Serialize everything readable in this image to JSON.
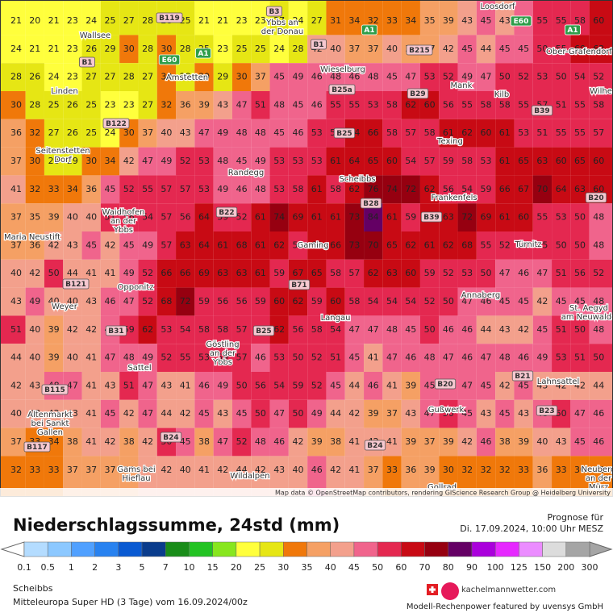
{
  "map": {
    "attribution": "Map data © OpenStreetMap contributors, rendering GIScience Research Group @ Heidelberg University",
    "rows": [
      [
        21,
        20,
        21,
        23,
        24,
        25,
        27,
        28,
        28,
        25,
        21,
        21,
        23,
        23,
        27,
        24,
        27,
        31,
        34,
        32,
        33,
        34,
        35,
        39,
        43,
        45,
        43,
        48,
        55,
        55,
        58,
        60
      ],
      [
        24,
        21,
        21,
        23,
        26,
        29,
        30,
        28,
        30,
        28,
        25,
        23,
        25,
        25,
        24,
        28,
        42,
        40,
        37,
        37,
        40,
        37,
        37,
        42,
        45,
        44,
        45,
        45,
        50,
        55,
        60,
        62
      ],
      [
        28,
        26,
        24,
        23,
        27,
        27,
        28,
        27,
        30,
        28,
        30,
        29,
        30,
        37,
        45,
        49,
        46,
        48,
        46,
        48,
        45,
        47,
        53,
        52,
        49,
        47,
        50,
        52,
        53,
        50,
        54,
        52
      ],
      [
        30,
        28,
        25,
        26,
        25,
        23,
        23,
        27,
        32,
        36,
        39,
        43,
        47,
        51,
        48,
        45,
        46,
        55,
        55,
        53,
        58,
        62,
        60,
        56,
        55,
        58,
        58,
        55,
        57,
        51,
        55,
        58
      ],
      [
        36,
        32,
        27,
        26,
        25,
        24,
        30,
        37,
        40,
        43,
        47,
        49,
        48,
        48,
        45,
        46,
        53,
        55,
        64,
        66,
        58,
        57,
        58,
        61,
        62,
        60,
        61,
        53,
        51,
        55,
        55,
        57
      ],
      [
        37,
        30,
        28,
        29,
        30,
        34,
        42,
        47,
        49,
        52,
        53,
        48,
        45,
        49,
        53,
        53,
        53,
        61,
        64,
        65,
        60,
        54,
        57,
        59,
        58,
        53,
        61,
        65,
        63,
        60,
        65,
        60
      ],
      [
        41,
        32,
        33,
        34,
        36,
        45,
        52,
        55,
        57,
        57,
        53,
        49,
        46,
        48,
        53,
        58,
        61,
        58,
        62,
        76,
        74,
        72,
        62,
        56,
        54,
        59,
        66,
        67,
        70,
        64,
        63,
        60
      ],
      [
        37,
        35,
        39,
        40,
        40,
        51,
        56,
        54,
        57,
        56,
        64,
        59,
        52,
        61,
        74,
        69,
        61,
        61,
        73,
        84,
        61,
        59,
        61,
        63,
        72,
        69,
        61,
        60,
        55,
        53,
        50,
        48
      ],
      [
        37,
        36,
        42,
        43,
        45,
        42,
        45,
        49,
        57,
        63,
        64,
        61,
        68,
        61,
        62,
        58,
        60,
        66,
        73,
        70,
        65,
        62,
        61,
        62,
        68,
        55,
        52,
        56,
        55,
        50,
        50,
        48
      ],
      [
        40,
        42,
        50,
        44,
        41,
        41,
        49,
        52,
        66,
        66,
        69,
        63,
        63,
        61,
        59,
        67,
        65,
        58,
        57,
        62,
        63,
        60,
        59,
        52,
        53,
        50,
        47,
        46,
        47,
        51,
        56,
        52
      ],
      [
        43,
        49,
        40,
        40,
        43,
        46,
        47,
        52,
        68,
        72,
        59,
        56,
        56,
        59,
        60,
        62,
        59,
        60,
        58,
        54,
        54,
        54,
        52,
        50,
        47,
        46,
        45,
        45,
        42,
        45,
        45,
        48
      ],
      [
        51,
        40,
        39,
        42,
        42,
        45,
        59,
        62,
        53,
        54,
        58,
        58,
        57,
        56,
        62,
        56,
        58,
        54,
        47,
        47,
        48,
        45,
        50,
        46,
        46,
        44,
        43,
        42,
        45,
        51,
        50,
        48
      ],
      [
        44,
        40,
        39,
        40,
        41,
        47,
        48,
        49,
        52,
        55,
        53,
        59,
        57,
        46,
        53,
        50,
        52,
        51,
        45,
        41,
        47,
        46,
        48,
        47,
        46,
        47,
        48,
        46,
        49,
        53,
        51,
        50
      ],
      [
        42,
        43,
        48,
        47,
        41,
        43,
        51,
        47,
        43,
        41,
        46,
        49,
        50,
        56,
        54,
        59,
        52,
        45,
        44,
        46,
        41,
        39,
        45,
        46,
        47,
        45,
        42,
        45,
        43,
        42,
        42,
        44
      ],
      [
        40,
        43,
        42,
        43,
        41,
        45,
        42,
        47,
        44,
        42,
        45,
        43,
        45,
        50,
        47,
        50,
        49,
        44,
        42,
        39,
        37,
        43,
        47,
        50,
        45,
        43,
        45,
        43,
        48,
        50,
        47,
        46
      ],
      [
        37,
        33,
        34,
        38,
        41,
        42,
        38,
        42,
        50,
        45,
        38,
        47,
        52,
        48,
        46,
        42,
        39,
        38,
        41,
        42,
        41,
        39,
        37,
        39,
        42,
        46,
        38,
        39,
        40,
        43,
        45,
        46
      ],
      [
        32,
        33,
        33,
        37,
        37,
        37,
        38,
        40,
        42,
        40,
        41,
        42,
        44,
        42,
        43,
        40,
        46,
        42,
        41,
        37,
        33,
        36,
        39,
        30,
        32,
        32,
        32,
        33,
        36,
        33,
        30,
        32
      ]
    ],
    "places": [
      [
        "Loosdorf"
      ],
      [
        "Wallsee"
      ],
      [
        "Ybbs an",
        "der Donau"
      ],
      [
        "Wieselburg"
      ],
      [
        "Mank"
      ],
      [
        "Kilb"
      ],
      [
        "Ober-Grafendorf"
      ],
      [
        "Linden"
      ],
      [
        "Amstetten"
      ],
      [
        "Wilhe"
      ],
      [
        "Texing"
      ],
      [
        "Seitenstetten",
        "Dorf"
      ],
      [
        "Randegg"
      ],
      [
        "Scheibbs"
      ],
      [
        "Frankenfels"
      ],
      [
        "Waidhofen",
        "an der",
        "Ybbs"
      ],
      [
        "Maria Neustift"
      ],
      [
        "Gaming"
      ],
      [
        "Türnitz"
      ],
      [
        "Opponitz"
      ],
      [
        "Annaberg"
      ],
      [
        "Weyer"
      ],
      [
        "St. Aegyd",
        "am Neuwalde"
      ],
      [
        "Langau"
      ],
      [
        "Göstling",
        "an der",
        "Ybbs"
      ],
      [
        "Sattel"
      ],
      [
        "Lahnsattel"
      ],
      [
        "Altenmarkt",
        "bei Sankt",
        "Gallen"
      ],
      [
        "Gußwerk"
      ],
      [
        "Gams bei",
        "Hieflau"
      ],
      [
        "Wildalpen"
      ],
      [
        "Neuberg",
        "an der",
        "Mürz"
      ],
      [
        "Gollrad"
      ]
    ],
    "roads": [
      "B119",
      "B3",
      "B1",
      "A1",
      "E60",
      "A1",
      "B1",
      "A1",
      "E60",
      "B215",
      "E60",
      "A1",
      "B25a",
      "B29",
      "B39",
      "B122",
      "B25",
      "B28",
      "B22",
      "B39",
      "B20",
      "B71",
      "B121",
      "B31",
      "B25",
      "B115",
      "B21",
      "B20",
      "B23",
      "B117",
      "B24",
      "B24"
    ]
  },
  "legend": {
    "title": "Niederschlagssumme, 24std (mm)",
    "levels": [
      0.1,
      0.5,
      1,
      2,
      3,
      5,
      7,
      10,
      15,
      20,
      25,
      30,
      35,
      40,
      45,
      50,
      60,
      70,
      80,
      90,
      100,
      125,
      150,
      200,
      300
    ],
    "colors": [
      "#b4dcff",
      "#8cc8ff",
      "#50a0ff",
      "#2882f0",
      "#0a5ad2",
      "#0a3c8c",
      "#198c19",
      "#23c323",
      "#87e61e",
      "#ffff3c",
      "#e6e614",
      "#f0780a",
      "#f5a064",
      "#f3a08c",
      "#f0648c",
      "#e42850",
      "#c80a14",
      "#960010",
      "#640064",
      "#aa00dc",
      "#e628ff",
      "#eb8cff",
      "#dcdcdc",
      "#a5a5a5"
    ]
  },
  "forecast": {
    "label": "Prognose für",
    "time": "Di. 17.09.2024, 10:00 Uhr MESZ"
  },
  "footer": {
    "location": "Scheibbs",
    "model": "Mitteleuropa Super HD (3 Tage) vom 16.09.2024/00z",
    "brand": "kachelmannwetter.com",
    "credit": "Modell-Rechenpower featured by uvensys GmbH"
  }
}
